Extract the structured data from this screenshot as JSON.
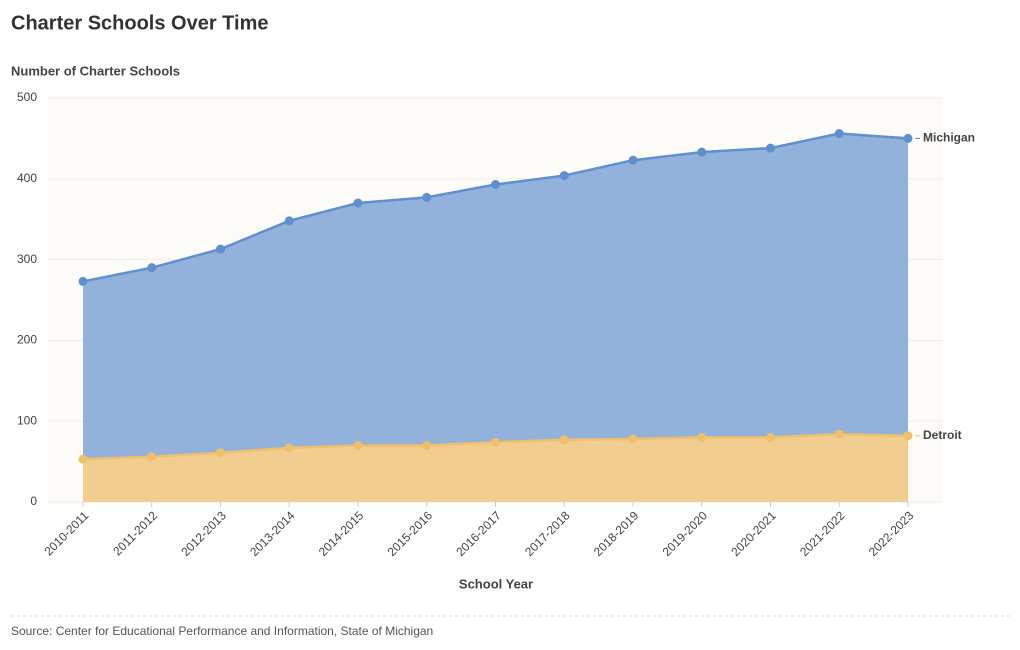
{
  "chart_data": {
    "type": "area",
    "title": "Charter Schools Over Time",
    "y_label": "Number of Charter Schools",
    "x_label": "School Year",
    "source": "Source: Center for Educational Performance and Information, State of Michigan",
    "categories": [
      "2010-2011",
      "2011-2012",
      "2012-2013",
      "2013-2014",
      "2014-2015",
      "2015-2016",
      "2016-2017",
      "2017-2018",
      "2018-2019",
      "2019-2020",
      "2020-2021",
      "2021-2022",
      "2022-2023"
    ],
    "series": [
      {
        "name": "Michigan",
        "color": "#5f8fcf",
        "fill": "#92b2db",
        "values": [
          273,
          290,
          313,
          348,
          370,
          377,
          393,
          404,
          423,
          433,
          438,
          456,
          450
        ]
      },
      {
        "name": "Detroit",
        "color": "#efbf6c",
        "fill": "#f2cd90",
        "values": [
          53,
          56,
          61,
          67,
          70,
          70,
          74,
          77,
          78,
          80,
          80,
          84,
          82
        ]
      }
    ],
    "ylim": [
      0,
      500
    ],
    "yticks": [
      0,
      100,
      200,
      300,
      400,
      500
    ],
    "grid": true
  }
}
